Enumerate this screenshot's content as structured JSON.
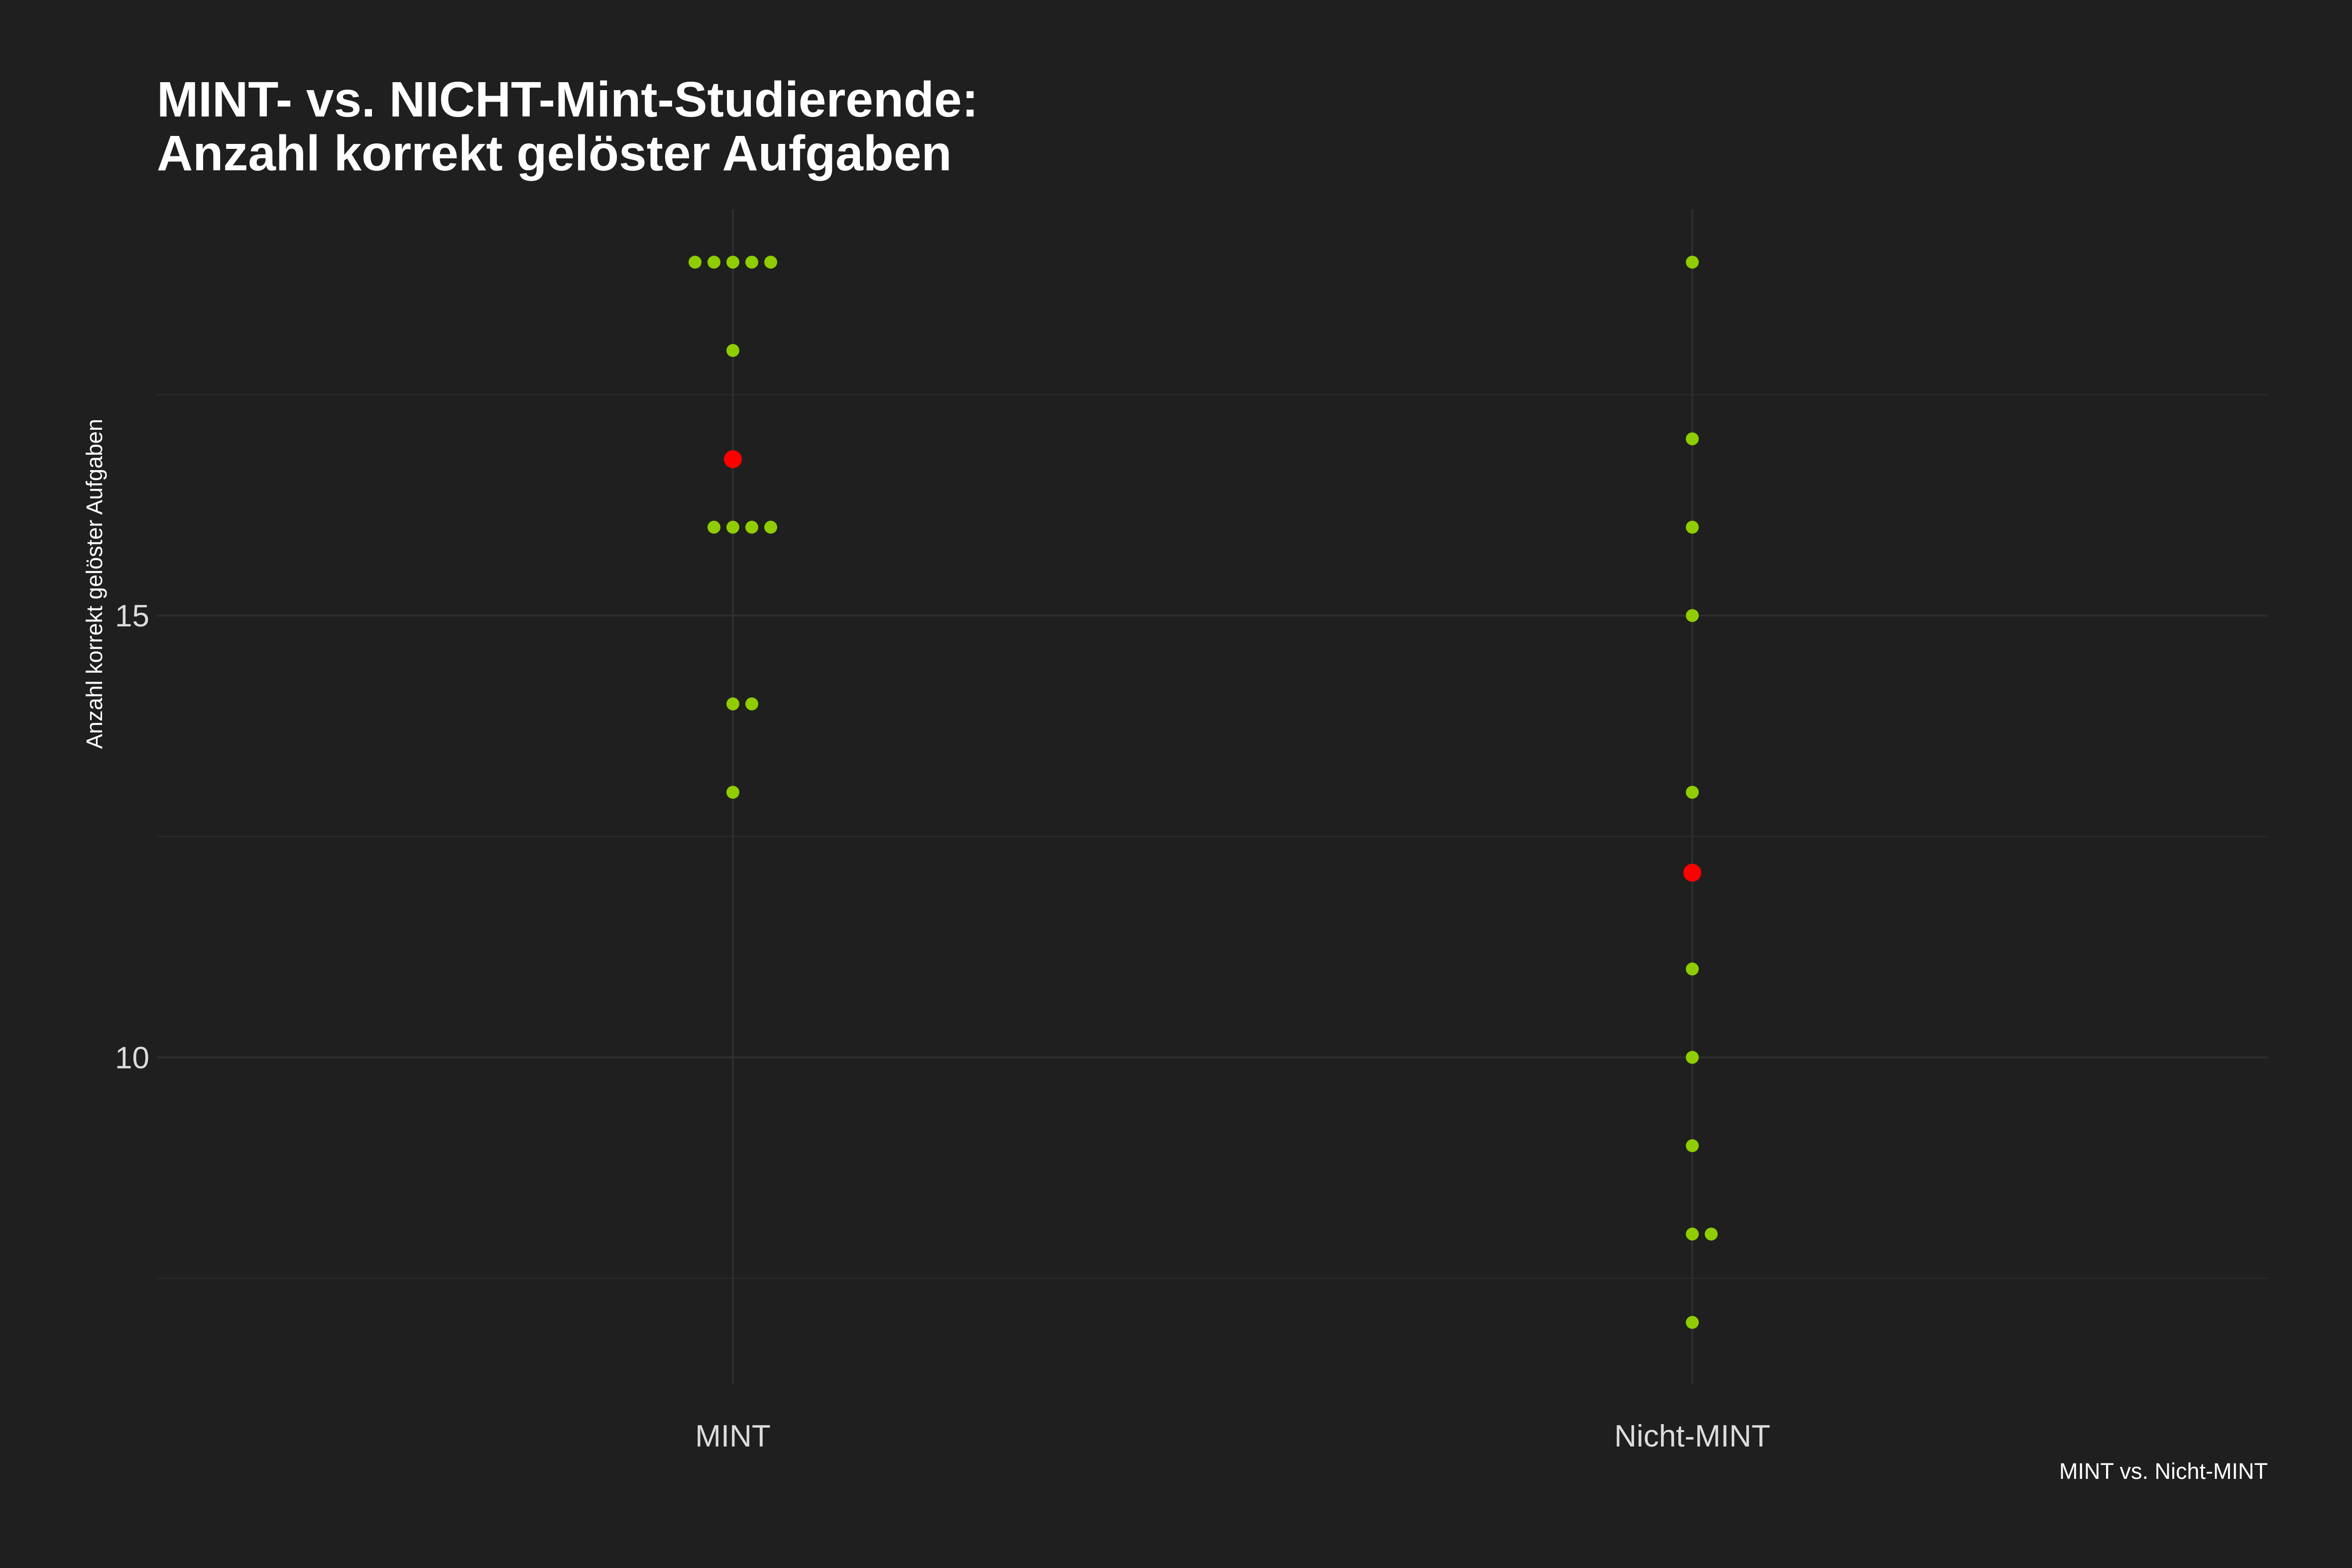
{
  "chart_data": {
    "type": "scatter",
    "title": "MINT- vs. NICHT-Mint-Studierende:",
    "subtitle": "Anzahl korrekt gelöster Aufgaben",
    "xlabel": "MINT vs. Nicht-MINT",
    "ylabel": "Anzahl korrekt gelöster Aufgaben",
    "categories": [
      "MINT",
      "Nicht-MINT"
    ],
    "ylim": [
      6.3,
      19.6
    ],
    "yticks": [
      10,
      15
    ],
    "ytick_labels": [
      "10",
      "15"
    ],
    "grid": true,
    "series": [
      {
        "values": [
          {
            "x": "MINT",
            "y": 19,
            "count": 5
          },
          {
            "x": "MINT",
            "y": 18,
            "count": 1
          },
          {
            "x": "MINT",
            "y": 16,
            "count": 4
          },
          {
            "x": "MINT",
            "y": 14,
            "count": 2
          },
          {
            "x": "MINT",
            "y": 13,
            "count": 1
          },
          {
            "x": "Nicht-MINT",
            "y": 19,
            "count": 1
          },
          {
            "x": "Nicht-MINT",
            "y": 17,
            "count": 1
          },
          {
            "x": "Nicht-MINT",
            "y": 16,
            "count": 1
          },
          {
            "x": "Nicht-MINT",
            "y": 15,
            "count": 1
          },
          {
            "x": "Nicht-MINT",
            "y": 13,
            "count": 1
          },
          {
            "x": "Nicht-MINT",
            "y": 11,
            "count": 1
          },
          {
            "x": "Nicht-MINT",
            "y": 10,
            "count": 1
          },
          {
            "x": "Nicht-MINT",
            "y": 9,
            "count": 1
          },
          {
            "x": "Nicht-MINT",
            "y": 8,
            "count": 2
          },
          {
            "x": "Nicht-MINT",
            "y": 7,
            "count": 1
          }
        ]
      },
      {
        "values": [
          {
            "x": "MINT",
            "y": 16.77
          },
          {
            "x": "Nicht-MINT",
            "y": 12.09
          }
        ]
      }
    ],
    "colors": {
      "background": "#1f1f1f",
      "points": "#8fcc00",
      "means": "#ff0000",
      "grid": "#2e2e2e",
      "tick_text": "#dcdcdc",
      "title_text": "#ffffff"
    }
  }
}
